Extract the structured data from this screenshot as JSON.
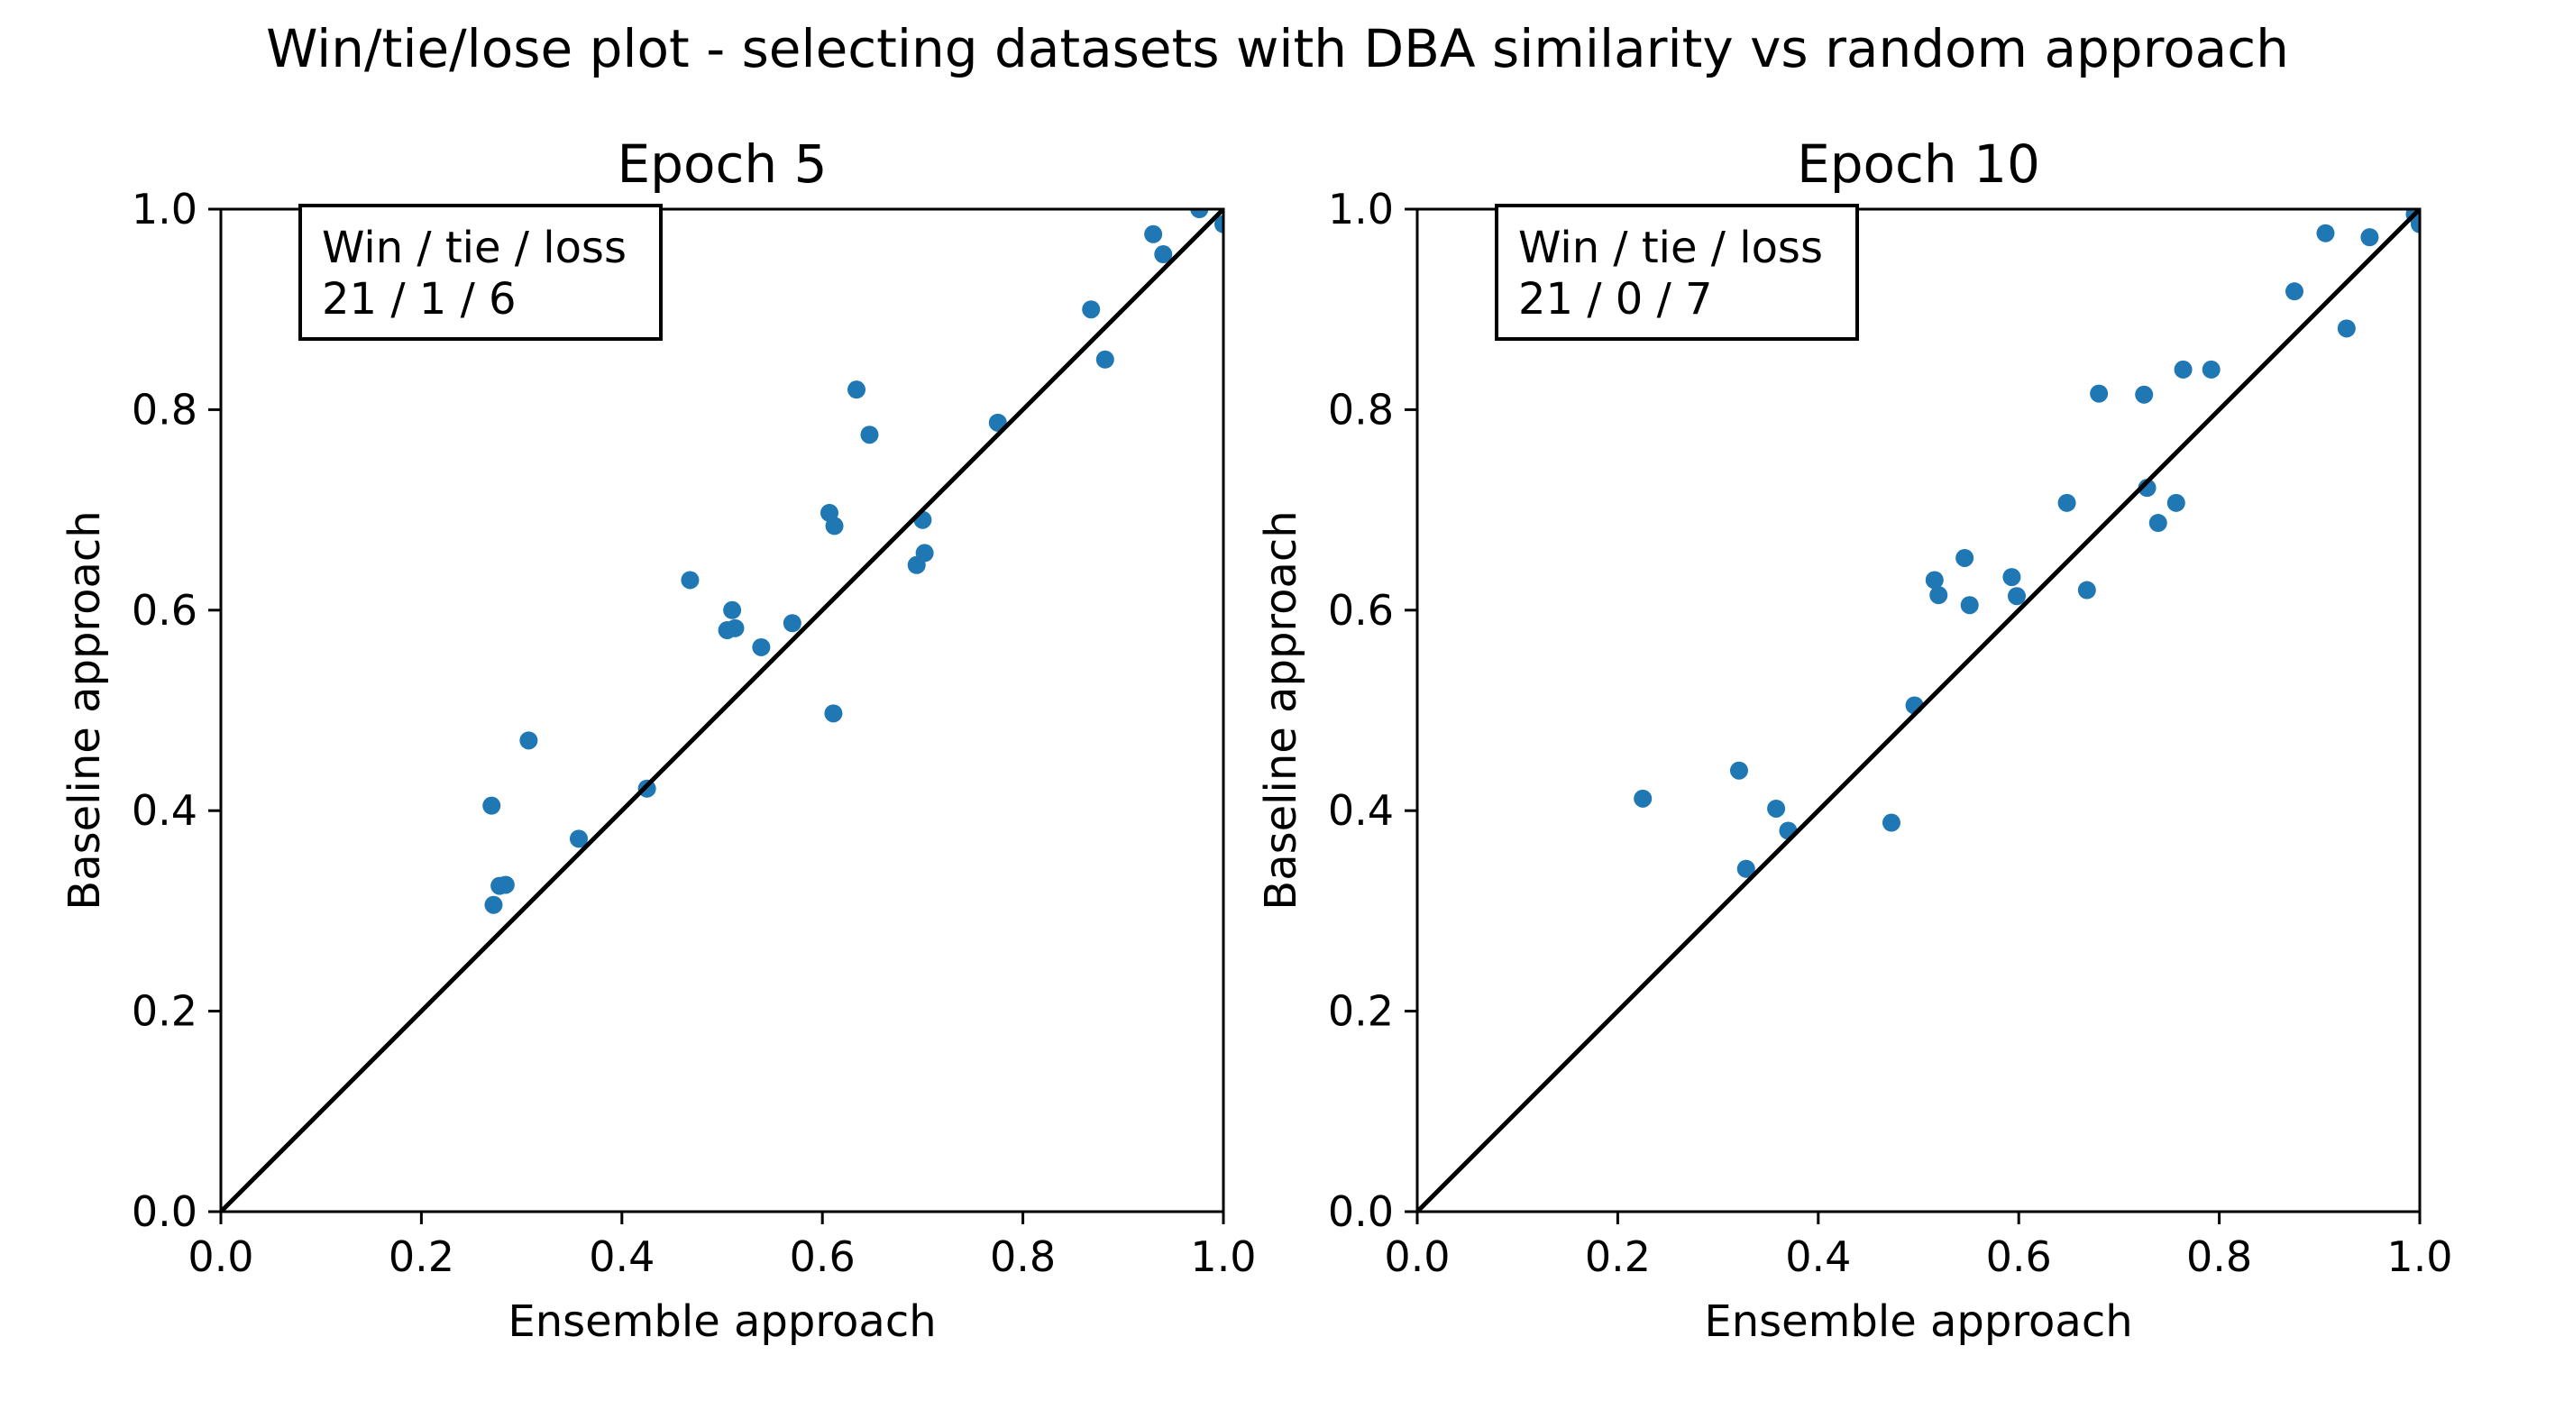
{
  "suptitle": "Win/tie/lose plot - selecting datasets with DBA similarity vs random approach",
  "colors": {
    "points": "#1f77b4",
    "diagonal": "#000000",
    "axes": "#000000"
  },
  "chart_data": [
    {
      "type": "scatter",
      "title": "Epoch 5",
      "xlabel": "Ensemble approach",
      "ylabel": "Baseline approach",
      "xlim": [
        0.0,
        1.0
      ],
      "ylim": [
        0.0,
        1.0
      ],
      "xticks": [
        "0.0",
        "0.2",
        "0.4",
        "0.6",
        "0.8",
        "1.0"
      ],
      "yticks": [
        "0.0",
        "0.2",
        "0.4",
        "0.6",
        "0.8",
        "1.0"
      ],
      "grid": false,
      "reference_line": "y = x",
      "annotation": {
        "line1": "Win / tie / loss",
        "line2": "21 / 1 / 6"
      },
      "points": [
        {
          "x": 0.27,
          "y": 0.405
        },
        {
          "x": 0.272,
          "y": 0.306
        },
        {
          "x": 0.278,
          "y": 0.325
        },
        {
          "x": 0.284,
          "y": 0.326
        },
        {
          "x": 0.307,
          "y": 0.47
        },
        {
          "x": 0.357,
          "y": 0.372
        },
        {
          "x": 0.425,
          "y": 0.422
        },
        {
          "x": 0.468,
          "y": 0.63
        },
        {
          "x": 0.505,
          "y": 0.58
        },
        {
          "x": 0.51,
          "y": 0.6
        },
        {
          "x": 0.513,
          "y": 0.582
        },
        {
          "x": 0.539,
          "y": 0.563
        },
        {
          "x": 0.57,
          "y": 0.587
        },
        {
          "x": 0.607,
          "y": 0.697
        },
        {
          "x": 0.611,
          "y": 0.497
        },
        {
          "x": 0.612,
          "y": 0.684
        },
        {
          "x": 0.634,
          "y": 0.82
        },
        {
          "x": 0.647,
          "y": 0.775
        },
        {
          "x": 0.694,
          "y": 0.645
        },
        {
          "x": 0.7,
          "y": 0.69
        },
        {
          "x": 0.702,
          "y": 0.657
        },
        {
          "x": 0.775,
          "y": 0.787
        },
        {
          "x": 0.868,
          "y": 0.9
        },
        {
          "x": 0.882,
          "y": 0.85
        },
        {
          "x": 0.93,
          "y": 0.975
        },
        {
          "x": 0.94,
          "y": 0.955
        },
        {
          "x": 0.976,
          "y": 1.0
        },
        {
          "x": 1.0,
          "y": 0.985
        }
      ]
    },
    {
      "type": "scatter",
      "title": "Epoch 10",
      "xlabel": "Ensemble approach",
      "ylabel": "Baseline approach",
      "xlim": [
        0.0,
        1.0
      ],
      "ylim": [
        0.0,
        1.0
      ],
      "xticks": [
        "0.0",
        "0.2",
        "0.4",
        "0.6",
        "0.8",
        "1.0"
      ],
      "yticks": [
        "0.0",
        "0.2",
        "0.4",
        "0.6",
        "0.8",
        "1.0"
      ],
      "grid": false,
      "reference_line": "y = x",
      "annotation": {
        "line1": "Win / tie / loss",
        "line2": "21 / 0 / 7"
      },
      "points": [
        {
          "x": 0.225,
          "y": 0.412
        },
        {
          "x": 0.321,
          "y": 0.44
        },
        {
          "x": 0.328,
          "y": 0.342
        },
        {
          "x": 0.358,
          "y": 0.402
        },
        {
          "x": 0.37,
          "y": 0.38
        },
        {
          "x": 0.473,
          "y": 0.388
        },
        {
          "x": 0.496,
          "y": 0.505
        },
        {
          "x": 0.516,
          "y": 0.63
        },
        {
          "x": 0.52,
          "y": 0.615
        },
        {
          "x": 0.546,
          "y": 0.652
        },
        {
          "x": 0.551,
          "y": 0.605
        },
        {
          "x": 0.593,
          "y": 0.633
        },
        {
          "x": 0.598,
          "y": 0.614
        },
        {
          "x": 0.648,
          "y": 0.707
        },
        {
          "x": 0.668,
          "y": 0.62
        },
        {
          "x": 0.68,
          "y": 0.816
        },
        {
          "x": 0.725,
          "y": 0.815
        },
        {
          "x": 0.728,
          "y": 0.722
        },
        {
          "x": 0.739,
          "y": 0.687
        },
        {
          "x": 0.757,
          "y": 0.707
        },
        {
          "x": 0.764,
          "y": 0.84
        },
        {
          "x": 0.792,
          "y": 0.84
        },
        {
          "x": 0.875,
          "y": 0.918
        },
        {
          "x": 0.906,
          "y": 0.976
        },
        {
          "x": 0.927,
          "y": 0.881
        },
        {
          "x": 0.95,
          "y": 0.972
        },
        {
          "x": 0.995,
          "y": 0.995
        },
        {
          "x": 1.0,
          "y": 0.985
        }
      ]
    }
  ]
}
